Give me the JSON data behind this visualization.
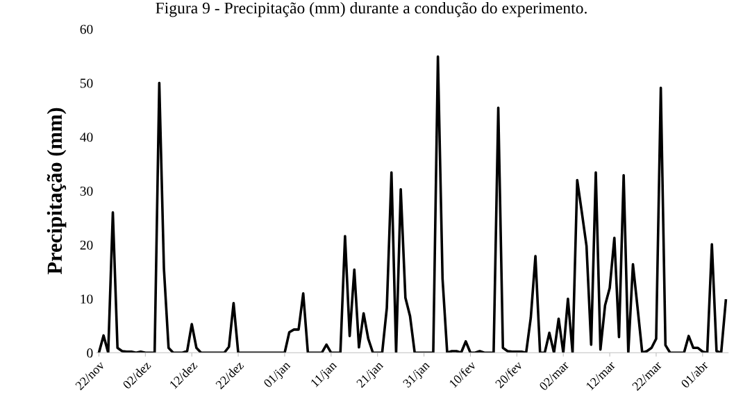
{
  "chart_data": {
    "type": "line",
    "title": "Figura 9 - Precipitação (mm) durante a condução do experimento.",
    "ylabel": "Precipitação (mm)",
    "categories": [
      "22/nov",
      null,
      null,
      null,
      null,
      null,
      null,
      null,
      null,
      null,
      "02/dez",
      null,
      null,
      null,
      null,
      null,
      null,
      null,
      null,
      null,
      "12/dez",
      null,
      null,
      null,
      null,
      null,
      null,
      null,
      null,
      null,
      "22/dez",
      null,
      null,
      null,
      null,
      null,
      null,
      null,
      null,
      null,
      "01/jan",
      null,
      null,
      null,
      null,
      null,
      null,
      null,
      null,
      null,
      "11/jan",
      null,
      null,
      null,
      null,
      null,
      null,
      null,
      null,
      null,
      "21/jan",
      null,
      null,
      null,
      null,
      null,
      null,
      null,
      null,
      null,
      "31/jan",
      null,
      null,
      null,
      null,
      null,
      null,
      null,
      null,
      null,
      "10/fev",
      null,
      null,
      null,
      null,
      null,
      null,
      null,
      null,
      null,
      "20/fev",
      null,
      null,
      null,
      null,
      null,
      null,
      null,
      null,
      null,
      "02/mar",
      null,
      null,
      null,
      null,
      null,
      null,
      null,
      null,
      null,
      "12/mar",
      null,
      null,
      null,
      null,
      null,
      null,
      null,
      null,
      null,
      "22/mar",
      null,
      null,
      null,
      null,
      null,
      null,
      null,
      null,
      null,
      "01/abr",
      null,
      null,
      null,
      null,
      null
    ],
    "series": [
      {
        "color": "#000000",
        "values": [
          0,
          3.2,
          0,
          26,
          0.9,
          0.3,
          0.2,
          0.2,
          0,
          0.2,
          0,
          0,
          0,
          50,
          15.6,
          0.9,
          0,
          0,
          0,
          0.3,
          5.3,
          0.9,
          0,
          0,
          0,
          0,
          0,
          0,
          1.1,
          9.2,
          0,
          0,
          0,
          0,
          0,
          0,
          0,
          0,
          0,
          0,
          0,
          3.8,
          4.3,
          4.3,
          11,
          0,
          0,
          0,
          0,
          1.5,
          0,
          0,
          0,
          21.6,
          3.1,
          15.4,
          1.0,
          7.3,
          2.6,
          0,
          0,
          0,
          8.3,
          33.4,
          0,
          30.3,
          10.2,
          6.8,
          0,
          0,
          0,
          0,
          0,
          54.9,
          13.7,
          0,
          0.3,
          0.3,
          0,
          2.1,
          0,
          0,
          0.3,
          0,
          0,
          0,
          45.4,
          0.9,
          0.3,
          0.2,
          0.2,
          0.2,
          0,
          6.5,
          17.9,
          0,
          0,
          3.7,
          0,
          6.3,
          0,
          10,
          0,
          32,
          26,
          19.8,
          1.5,
          33.4,
          0.6,
          8.8,
          12,
          21.3,
          2.9,
          32.9,
          0,
          16.4,
          8.3,
          0,
          0.3,
          0.9,
          2.6,
          49.1,
          1.4,
          0,
          0,
          0,
          0,
          3.1,
          0.9,
          0.9,
          0.2,
          0,
          20.1,
          0.3,
          0,
          9.7
        ]
      }
    ],
    "ylim": [
      0,
      60
    ],
    "yticks": [
      0,
      10,
      20,
      30,
      40,
      50,
      60
    ],
    "grid": false,
    "legend": false,
    "marker": "none",
    "line_style": "solid"
  }
}
